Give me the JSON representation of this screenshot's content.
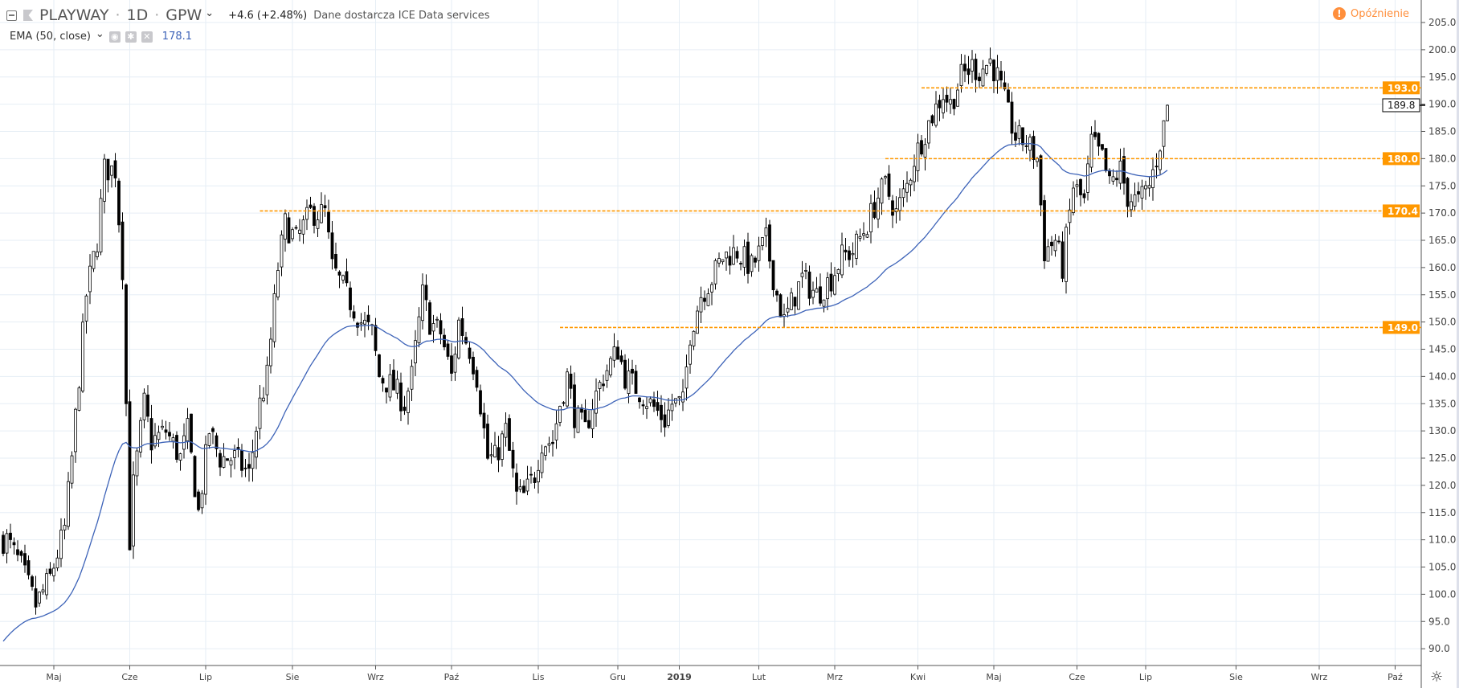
{
  "header": {
    "symbol": "PLAYWAY",
    "interval": "1D",
    "exchange": "GPW",
    "sep": "·",
    "change": "+4.6 (+2.48%)",
    "source": "Dane dostarcza ICE Data services",
    "delay_label": "Opóźnienie"
  },
  "indicator": {
    "label": "EMA (50, close)",
    "value": "178.1",
    "chevron": "⌄"
  },
  "colors": {
    "up": "#ffffff",
    "down": "#000000",
    "ema": "#3d63b8",
    "levels": "#ff9800",
    "grid": "#e6eef5"
  },
  "chart_data": {
    "type": "candlestick",
    "title": "PLAYWAY · 1D · GPW",
    "ylim": [
      87,
      207
    ],
    "y_ticks": [
      "90.0",
      "95.0",
      "100.0",
      "105.0",
      "110.0",
      "115.0",
      "120.0",
      "125.0",
      "130.0",
      "135.0",
      "140.0",
      "145.0",
      "150.0",
      "155.0",
      "160.0",
      "165.0",
      "170.0",
      "175.0",
      "180.0",
      "185.0",
      "190.0",
      "195.0",
      "200.0",
      "205.0"
    ],
    "x_ticks": [
      {
        "label": "Maj",
        "day": 14
      },
      {
        "label": "Cze",
        "day": 35
      },
      {
        "label": "Lip",
        "day": 56
      },
      {
        "label": "Sie",
        "day": 80
      },
      {
        "label": "Wrz",
        "day": 103
      },
      {
        "label": "Paź",
        "day": 124
      },
      {
        "label": "Lis",
        "day": 148
      },
      {
        "label": "Gru",
        "day": 170
      },
      {
        "label": "2019",
        "day": 187
      },
      {
        "label": "Lut",
        "day": 209
      },
      {
        "label": "Mrz",
        "day": 230
      },
      {
        "label": "Kwi",
        "day": 253
      },
      {
        "label": "Maj",
        "day": 274
      },
      {
        "label": "Cze",
        "day": 297
      },
      {
        "label": "Lip",
        "day": 316
      },
      {
        "label": "Sie",
        "day": 341
      },
      {
        "label": "Wrz",
        "day": 364
      },
      {
        "label": "Paź",
        "day": 385
      }
    ],
    "close_anchors": [
      [
        0,
        110
      ],
      [
        1,
        110
      ],
      [
        5,
        105
      ],
      [
        9,
        98
      ],
      [
        13,
        103
      ],
      [
        17,
        112
      ],
      [
        19,
        125
      ],
      [
        21,
        140
      ],
      [
        23,
        155
      ],
      [
        26,
        165
      ],
      [
        28,
        178
      ],
      [
        31,
        178
      ],
      [
        33,
        160
      ],
      [
        35,
        110
      ],
      [
        36,
        120
      ],
      [
        39,
        135
      ],
      [
        41,
        128
      ],
      [
        45,
        130
      ],
      [
        49,
        125
      ],
      [
        51,
        130
      ],
      [
        54,
        115
      ],
      [
        57,
        130
      ],
      [
        60,
        125
      ],
      [
        64,
        125
      ],
      [
        68,
        122
      ],
      [
        71,
        135
      ],
      [
        73,
        140
      ],
      [
        76,
        160
      ],
      [
        78,
        168
      ],
      [
        81,
        165
      ],
      [
        85,
        170
      ],
      [
        89,
        170
      ],
      [
        91,
        160
      ],
      [
        95,
        155
      ],
      [
        99,
        150
      ],
      [
        102,
        148
      ],
      [
        104,
        140
      ],
      [
        108,
        138
      ],
      [
        111,
        135
      ],
      [
        113,
        140
      ],
      [
        116,
        155
      ],
      [
        118,
        150
      ],
      [
        121,
        148
      ],
      [
        124,
        140
      ],
      [
        126,
        150
      ],
      [
        129,
        145
      ],
      [
        131,
        140
      ],
      [
        134,
        125
      ],
      [
        136,
        125
      ],
      [
        139,
        130
      ],
      [
        142,
        118
      ],
      [
        144,
        118
      ],
      [
        147,
        122
      ],
      [
        149,
        128
      ],
      [
        152,
        128
      ],
      [
        154,
        135
      ],
      [
        156,
        140
      ],
      [
        158,
        133
      ],
      [
        161,
        130
      ],
      [
        163,
        135
      ],
      [
        166,
        140
      ],
      [
        170,
        145
      ],
      [
        172,
        140
      ],
      [
        175,
        138
      ],
      [
        179,
        135
      ],
      [
        183,
        132
      ],
      [
        185,
        135
      ],
      [
        188,
        135
      ],
      [
        190,
        148
      ],
      [
        193,
        155
      ],
      [
        196,
        158
      ],
      [
        199,
        162
      ],
      [
        203,
        163
      ],
      [
        207,
        160
      ],
      [
        211,
        165
      ],
      [
        214,
        155
      ],
      [
        216,
        150
      ],
      [
        219,
        155
      ],
      [
        221,
        158
      ],
      [
        225,
        155
      ],
      [
        229,
        158
      ],
      [
        232,
        162
      ],
      [
        235,
        163
      ],
      [
        239,
        168
      ],
      [
        242,
        173
      ],
      [
        244,
        175
      ],
      [
        247,
        170
      ],
      [
        250,
        175
      ],
      [
        252,
        180
      ],
      [
        255,
        185
      ],
      [
        257,
        188
      ],
      [
        260,
        192
      ],
      [
        262,
        190
      ],
      [
        265,
        195
      ],
      [
        268,
        197
      ],
      [
        270,
        196
      ],
      [
        273,
        198
      ],
      [
        275,
        195
      ],
      [
        278,
        188
      ],
      [
        280,
        184
      ],
      [
        283,
        183
      ],
      [
        286,
        180
      ],
      [
        288,
        163
      ],
      [
        291,
        165
      ],
      [
        293,
        160
      ],
      [
        296,
        175
      ],
      [
        299,
        172
      ],
      [
        301,
        183
      ],
      [
        304,
        180
      ],
      [
        306,
        175
      ],
      [
        309,
        178
      ],
      [
        311,
        173
      ],
      [
        314,
        172
      ],
      [
        317,
        175
      ],
      [
        319,
        180
      ],
      [
        321,
        186
      ],
      [
        322,
        189.8
      ]
    ],
    "ema_period": 50,
    "ema_last": 178.1,
    "last_price": "189.8",
    "levels": [
      {
        "price": 193.0,
        "label": "193.0",
        "from_day": 254
      },
      {
        "price": 180.0,
        "label": "180.0",
        "from_day": 244
      },
      {
        "price": 170.4,
        "label": "170.4",
        "from_day": 71
      },
      {
        "price": 149.0,
        "label": "149.0",
        "from_day": 154
      }
    ]
  }
}
